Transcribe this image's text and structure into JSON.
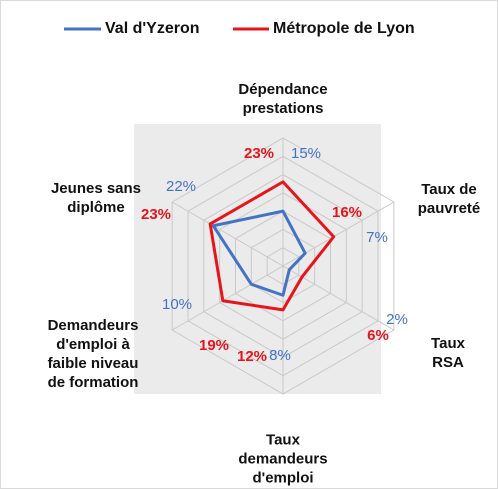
{
  "chart_data": {
    "type": "radar",
    "categories": [
      "Dépendance\nprestations",
      "Taux de\npauvreté",
      "Taux RSA",
      "Taux\ndemandeurs\nd'emploi",
      "Demandeurs\nd'emploi à\nfaible niveau\nde formation",
      "Jeunes sans\ndiplôme"
    ],
    "series": [
      {
        "name": "Val d'Yzeron",
        "color": "#4472c4",
        "values": [
          15,
          7,
          2,
          8,
          10,
          22
        ],
        "value_labels": [
          "15%",
          "7%",
          "2%",
          "8%",
          "10%",
          "22%"
        ]
      },
      {
        "name": "Métropole de Lyon",
        "color": "#e8141b",
        "values": [
          23,
          16,
          6,
          12,
          19,
          23
        ],
        "value_labels": [
          "23%",
          "16%",
          "6%",
          "12%",
          "19%",
          "23%"
        ]
      }
    ],
    "rlim": [
      0,
      35
    ],
    "rticks": [
      5,
      10,
      15,
      20,
      25,
      30,
      35
    ],
    "grid": true,
    "legend": "top"
  }
}
